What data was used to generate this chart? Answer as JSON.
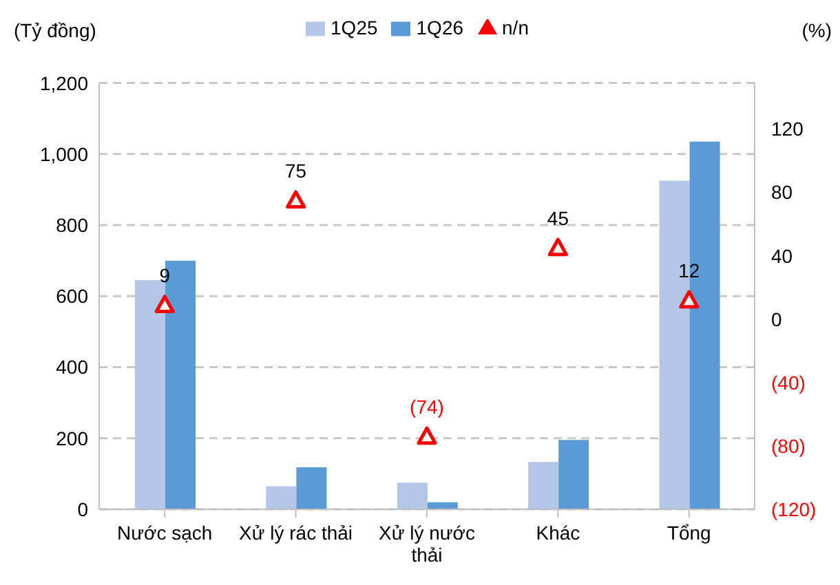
{
  "chart_data": {
    "type": "bar",
    "ylabel": "(Tỷ đồng)",
    "y2label": "(%)",
    "categories": [
      "Nước sạch",
      "Xử lý rác thải",
      "Xử lý nước thải",
      "Khác",
      "Tổng"
    ],
    "series": [
      {
        "name": "1Q25",
        "color": "#b4c7e7",
        "values": [
          645,
          65,
          75,
          133,
          925
        ]
      },
      {
        "name": "1Q26",
        "color": "#5b9bd5",
        "values": [
          700,
          118,
          20,
          195,
          1035
        ]
      },
      {
        "name": "n/n",
        "type": "scatter",
        "axis": "y2",
        "color": "#ff0000",
        "marker": "triangle",
        "values": [
          9,
          75,
          -74,
          45,
          12
        ],
        "value_labels": [
          "9",
          "75",
          "(74)",
          "45",
          "12"
        ]
      }
    ],
    "ylim": [
      0,
      1200
    ],
    "yticks": [
      0,
      {
        "value": 200,
        "label": "200"
      },
      {
        "value": 400,
        "label": "400"
      },
      {
        "value": 600,
        "label": "600"
      },
      {
        "value": 800,
        "label": "800"
      },
      {
        "value": 1000,
        "label": "1,000"
      },
      {
        "value": 1200,
        "label": "1,200"
      }
    ],
    "y2lim": [
      -120,
      149
    ],
    "y2ticks": [
      {
        "value": -120,
        "label": "(120)"
      },
      {
        "value": -80,
        "label": "(80)"
      },
      {
        "value": -40,
        "label": "(40)"
      },
      0,
      40,
      80,
      120
    ],
    "grid": "y",
    "legend": "top"
  }
}
